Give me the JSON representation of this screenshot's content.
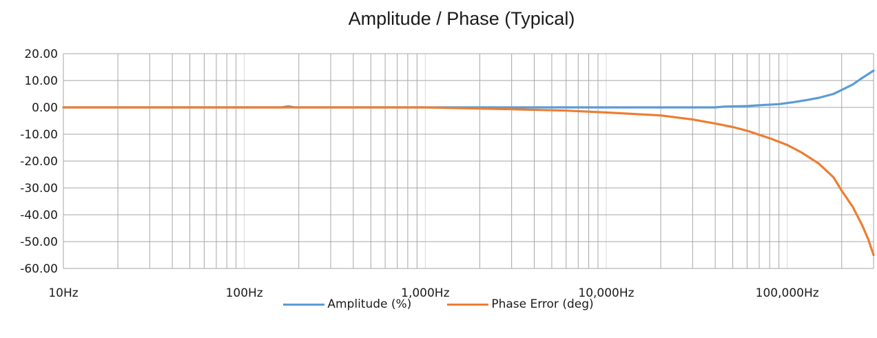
{
  "chart_data": {
    "type": "line",
    "title": "Amplitude / Phase (Typical)",
    "xscale": "log",
    "xlim": [
      10,
      300000
    ],
    "ylim": [
      -60,
      20
    ],
    "y_ticks": [
      20,
      10,
      0,
      -10,
      -20,
      -30,
      -40,
      -50,
      -60
    ],
    "y_tick_labels": [
      "20.00",
      "10.00",
      "0.00",
      "-10.00",
      "-20.00",
      "-30.00",
      "-40.00",
      "-50.00",
      "-60.00"
    ],
    "x_ticks": [
      10,
      100,
      1000,
      10000,
      100000
    ],
    "x_tick_labels": [
      "10Hz",
      "100Hz",
      "1,000Hz",
      "10,000Hz",
      "100,000Hz"
    ],
    "grid": true,
    "legend_position": "bottom",
    "series": [
      {
        "name": "Amplitude (%)",
        "color": "#5b9bd5",
        "x": [
          10,
          100,
          160,
          175,
          190,
          1000,
          3000,
          10000,
          20000,
          40000,
          45000,
          60000,
          70000,
          90000,
          110000,
          130000,
          150000,
          180000,
          200000,
          230000,
          260000,
          300000
        ],
        "y": [
          0,
          0,
          0,
          0.4,
          0,
          0,
          0,
          0,
          0,
          0,
          0.3,
          0.5,
          0.8,
          1.2,
          2.0,
          2.8,
          3.6,
          5.0,
          6.5,
          8.5,
          11.0,
          13.7
        ]
      },
      {
        "name": "Phase Error (deg)",
        "color": "#ed7d31",
        "x": [
          10,
          100,
          1000,
          3000,
          6000,
          10000,
          20000,
          30000,
          40000,
          50000,
          60000,
          70000,
          80000,
          100000,
          120000,
          150000,
          180000,
          200000,
          230000,
          260000,
          280000,
          300000
        ],
        "y": [
          0,
          0,
          0,
          -0.7,
          -1.2,
          -1.9,
          -3.0,
          -4.5,
          -6.0,
          -7.3,
          -8.7,
          -10.2,
          -11.5,
          -14.0,
          -16.8,
          -21.0,
          -26.0,
          -31.0,
          -37.0,
          -44.0,
          -49.0,
          -55.0
        ]
      }
    ]
  }
}
